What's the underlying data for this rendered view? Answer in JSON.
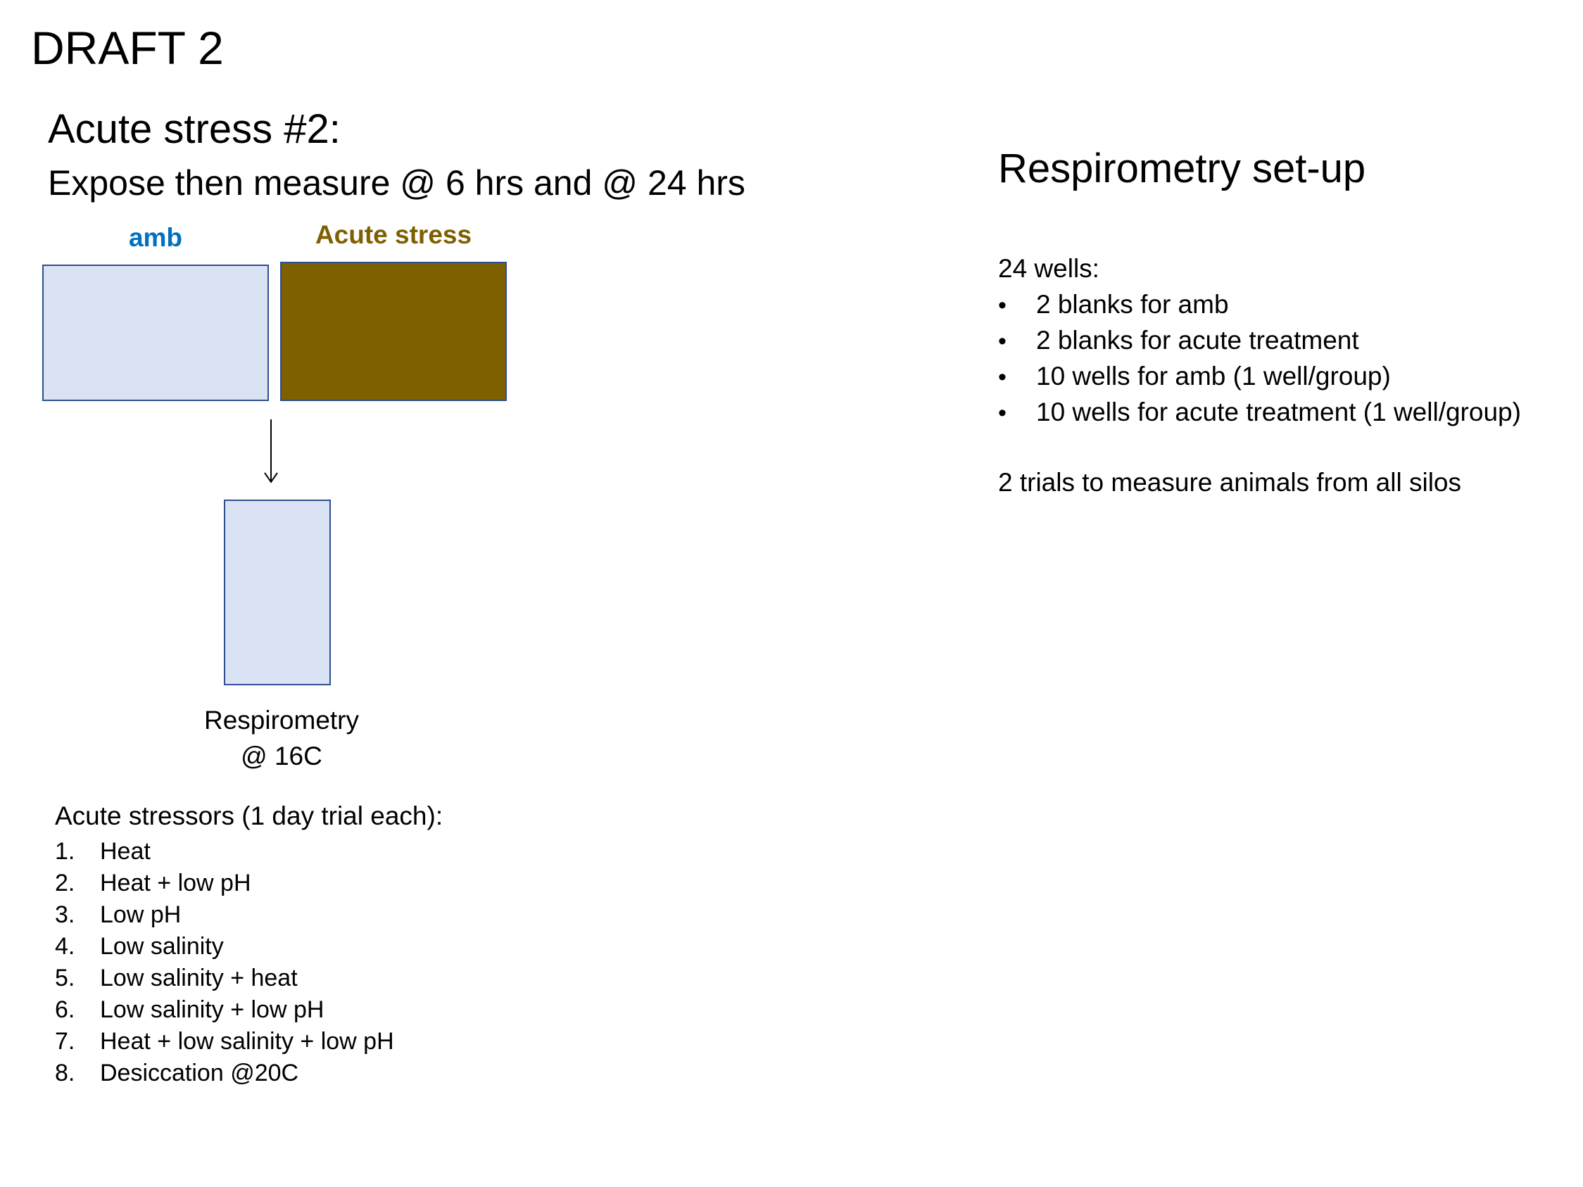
{
  "header": {
    "draft_label": "DRAFT 2",
    "title": "Acute stress #2:",
    "subtitle": "Expose then measure @ 6 hrs and @ 24 hrs"
  },
  "diagram": {
    "amb_label": "amb",
    "acute_label": "Acute stress",
    "respirometry_line1": "Respirometry",
    "respirometry_line2": "@ 16C",
    "colors": {
      "amb_label": "#0070c0",
      "acute_label": "#7f6000",
      "amb_box_fill": "#dae3f3",
      "acute_box_fill": "#7f6000",
      "respirometry_box_fill": "#dae3f3",
      "box_border": "#2f4f8f"
    }
  },
  "stressors": {
    "heading": "Acute stressors (1 day trial each):",
    "items": [
      {
        "num": "1.",
        "text": "Heat"
      },
      {
        "num": "2.",
        "text": "Heat + low pH"
      },
      {
        "num": "3.",
        "text": "Low pH"
      },
      {
        "num": "4.",
        "text": "Low salinity"
      },
      {
        "num": "5.",
        "text": "Low salinity + heat"
      },
      {
        "num": "6.",
        "text": "Low salinity + low pH"
      },
      {
        "num": "7.",
        "text": "Heat + low salinity + low pH"
      },
      {
        "num": "8.",
        "text": "Desiccation @20C"
      }
    ]
  },
  "setup": {
    "title": "Respirometry set-up",
    "wells_heading": "24 wells:",
    "bullet": "•",
    "wells": [
      "2 blanks for amb",
      "2 blanks for acute treatment",
      "10 wells for amb (1 well/group)",
      "10 wells for acute treatment (1 well/group)"
    ],
    "trials_note": "2 trials to measure animals from all silos"
  }
}
